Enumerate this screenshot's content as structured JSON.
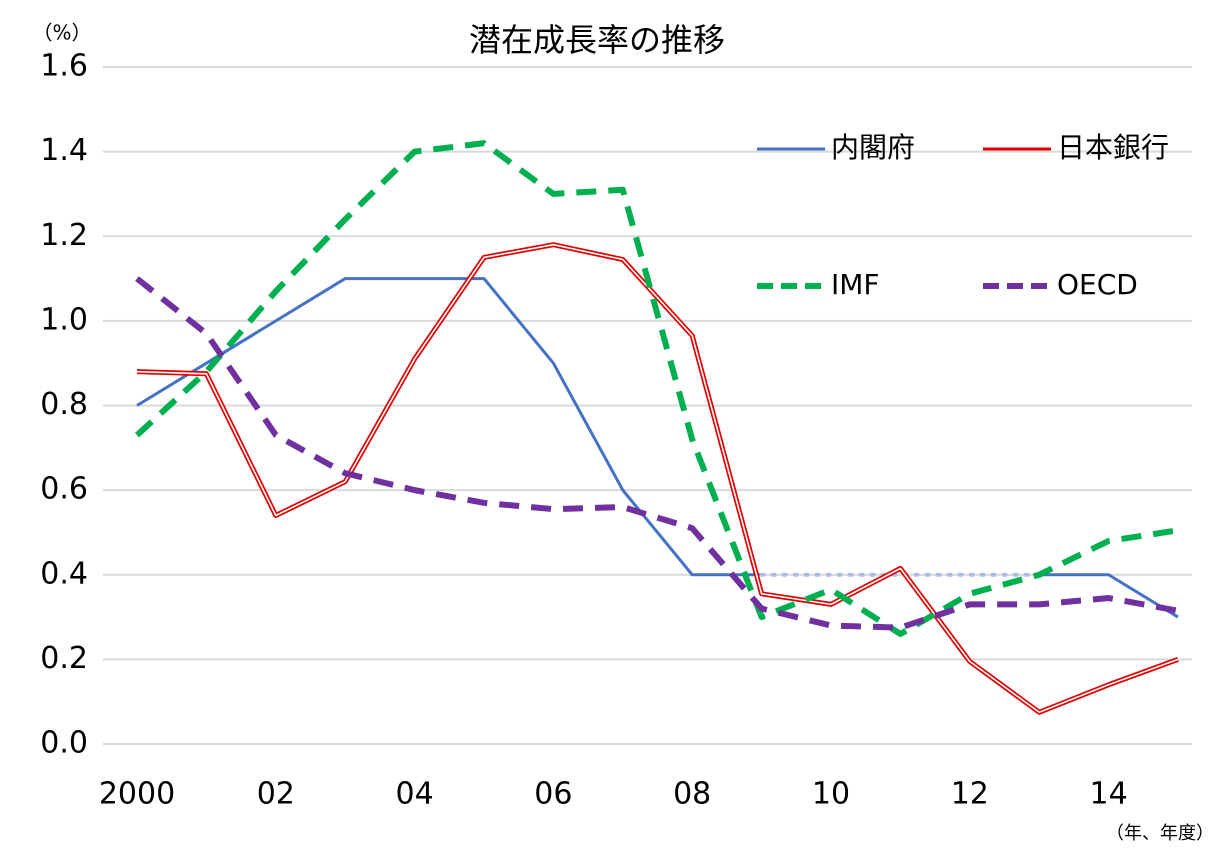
{
  "chart_data": {
    "type": "line",
    "title": "潜在成長率の推移",
    "y_unit": "（%）",
    "x_unit": "（年、年度）",
    "categories": [
      "2000",
      null,
      "02",
      null,
      "04",
      null,
      "06",
      null,
      "08",
      null,
      "10",
      null,
      "12",
      null,
      "14",
      null
    ],
    "ylim": [
      0,
      1.6
    ],
    "yticks": [
      {
        "value": 0,
        "label": "0.0"
      },
      0.2,
      0.4,
      0.6,
      0.8,
      {
        "value": 1,
        "label": "1.0"
      },
      1.2,
      1.4,
      1.6
    ],
    "grid": true,
    "series": [
      {
        "name": "内閣府",
        "color": "#4472c4",
        "style": "solid",
        "dotted_segments": [
          [
            9,
            13
          ]
        ],
        "dotted_color": "#a9bde6",
        "values": [
          0.8,
          0.9,
          1.0,
          1.1,
          1.1,
          1.1,
          0.9,
          0.6,
          0.4,
          0.4,
          0.4,
          0.4,
          0.4,
          0.4,
          0.4,
          0.3
        ]
      },
      {
        "name": "日本銀行",
        "color": "#e00000",
        "style": "double",
        "values": [
          0.88,
          0.875,
          0.54,
          0.62,
          0.91,
          1.15,
          1.18,
          1.145,
          0.965,
          0.355,
          0.33,
          0.415,
          0.195,
          0.075,
          0.14,
          0.2
        ]
      },
      {
        "name": "IMF",
        "color": "#00b050",
        "style": "dashed",
        "values": [
          0.73,
          0.88,
          1.07,
          1.24,
          1.4,
          1.42,
          1.3,
          1.31,
          0.72,
          0.3,
          0.365,
          0.26,
          0.355,
          0.4,
          0.48,
          0.505
        ]
      },
      {
        "name": "OECD",
        "color": "#7030a0",
        "style": "dashed",
        "values": [
          1.1,
          0.97,
          0.73,
          0.64,
          0.6,
          0.57,
          0.555,
          0.56,
          0.51,
          0.32,
          0.28,
          0.275,
          0.33,
          0.33,
          0.345,
          0.315
        ]
      }
    ]
  }
}
